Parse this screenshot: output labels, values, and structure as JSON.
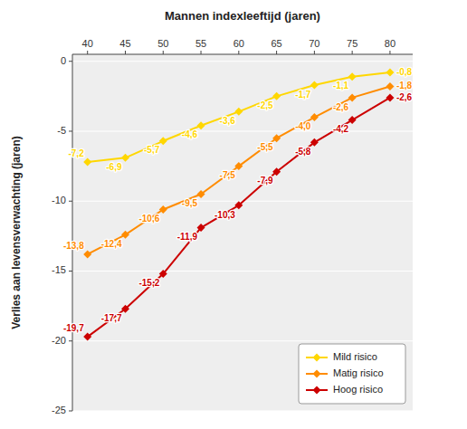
{
  "chart_data": {
    "type": "line",
    "x_label": "Mannen indexleeftijd (jaren)",
    "y_label": "Verlies aan levensverwachting (jaren)",
    "x": [
      40,
      45,
      50,
      55,
      60,
      65,
      70,
      75,
      80
    ],
    "series": [
      {
        "name": "Mild risico",
        "color": "#FFD700",
        "values": [
          -7.2,
          -6.9,
          -5.7,
          -4.6,
          -3.6,
          -2.5,
          -1.7,
          -1.1,
          -0.8
        ],
        "value_labels": [
          "-7,2",
          "-6,9",
          "-5,7",
          "-4,6",
          "-3,6",
          "-2,5",
          "-1,7",
          "-1,1",
          "-0,8"
        ]
      },
      {
        "name": "Matig risico",
        "color": "#FF8C00",
        "values": [
          -13.8,
          -12.4,
          -10.6,
          -9.5,
          -7.5,
          -5.5,
          -4.0,
          -2.6,
          -1.8
        ],
        "value_labels": [
          "-13,8",
          "-12,4",
          "-10,6",
          "-9,5",
          "-7,5",
          "-5,5",
          "-4,0",
          "-2,6",
          "-1,8"
        ]
      },
      {
        "name": "Hoog risico",
        "color": "#CC0000",
        "values": [
          -19.7,
          -17.7,
          -15.2,
          -11.9,
          -10.3,
          -7.9,
          -5.8,
          -4.2,
          -2.6
        ],
        "value_labels": [
          "-19,7",
          "-17,7",
          "-15,2",
          "-11,9",
          "-10,3",
          "-7,9",
          "-5,8",
          "-4,2",
          "-2,6"
        ]
      }
    ],
    "xlim": [
      38,
      83
    ],
    "ylim": [
      -25,
      0.5
    ],
    "xticks": [
      40,
      45,
      50,
      55,
      60,
      65,
      70,
      75,
      80
    ],
    "yticks": [
      0,
      -5,
      -10,
      -15,
      -20,
      -25
    ],
    "marker": "diamond",
    "grid": true,
    "legend": "lower right",
    "data_labels": true
  }
}
